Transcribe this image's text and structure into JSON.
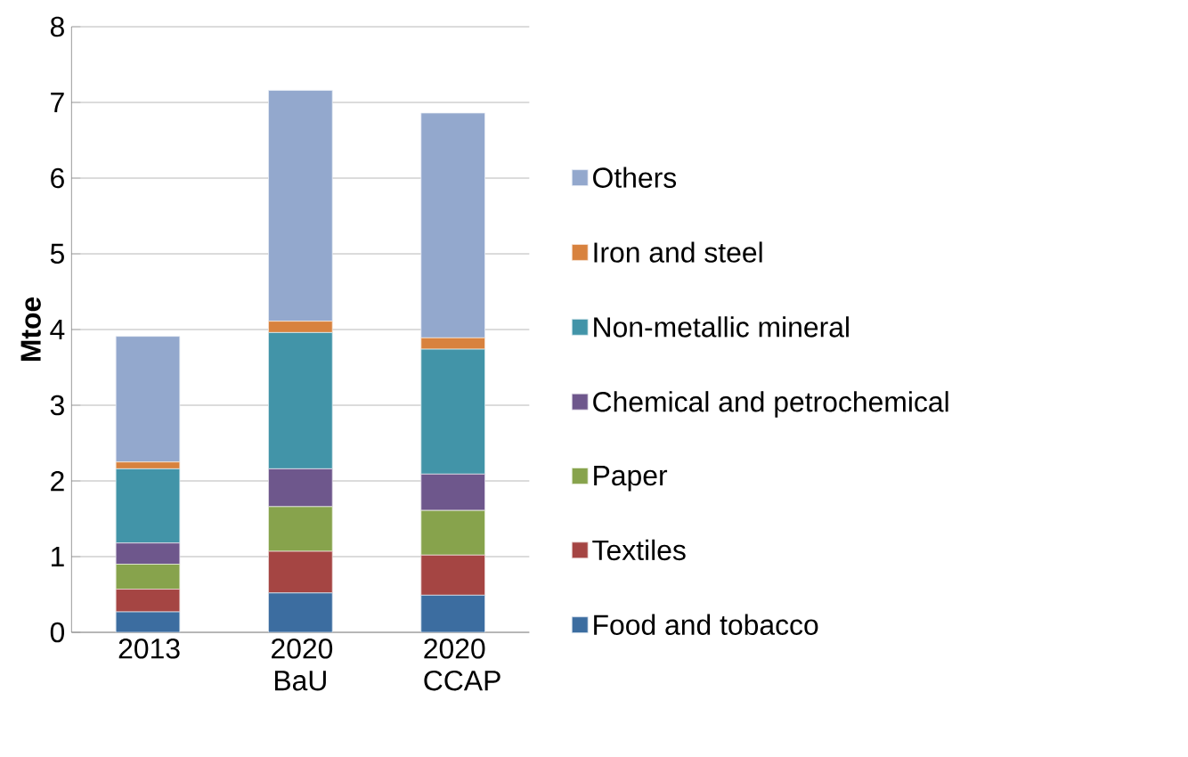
{
  "chart_data": {
    "type": "bar",
    "stacked": true,
    "ylabel": "Mtoe",
    "categories": [
      "2013",
      "2020 BaU",
      "2020 CCAP"
    ],
    "ylim": [
      0,
      8
    ],
    "yticks": [
      0,
      1,
      2,
      3,
      4,
      5,
      6,
      7,
      8
    ],
    "grid": "y",
    "legend": "right",
    "series": [
      {
        "name": "Food and tobacco",
        "color": "#3c6da0",
        "values": [
          0.27,
          0.52,
          0.49
        ]
      },
      {
        "name": "Textiles",
        "color": "#a54543",
        "values": [
          0.3,
          0.55,
          0.53
        ]
      },
      {
        "name": "Paper",
        "color": "#87a34c",
        "values": [
          0.33,
          0.59,
          0.59
        ]
      },
      {
        "name": "Chemical and petrochemical",
        "color": "#6e578c",
        "values": [
          0.28,
          0.5,
          0.48
        ]
      },
      {
        "name": "Non-metallic mineral",
        "color": "#4294a8",
        "values": [
          0.98,
          1.8,
          1.65
        ]
      },
      {
        "name": "Iron and steel",
        "color": "#d8823e",
        "values": [
          0.09,
          0.15,
          0.15
        ]
      },
      {
        "name": "Others",
        "color": "#93a8cd",
        "values": [
          1.66,
          3.05,
          2.97
        ]
      }
    ]
  }
}
